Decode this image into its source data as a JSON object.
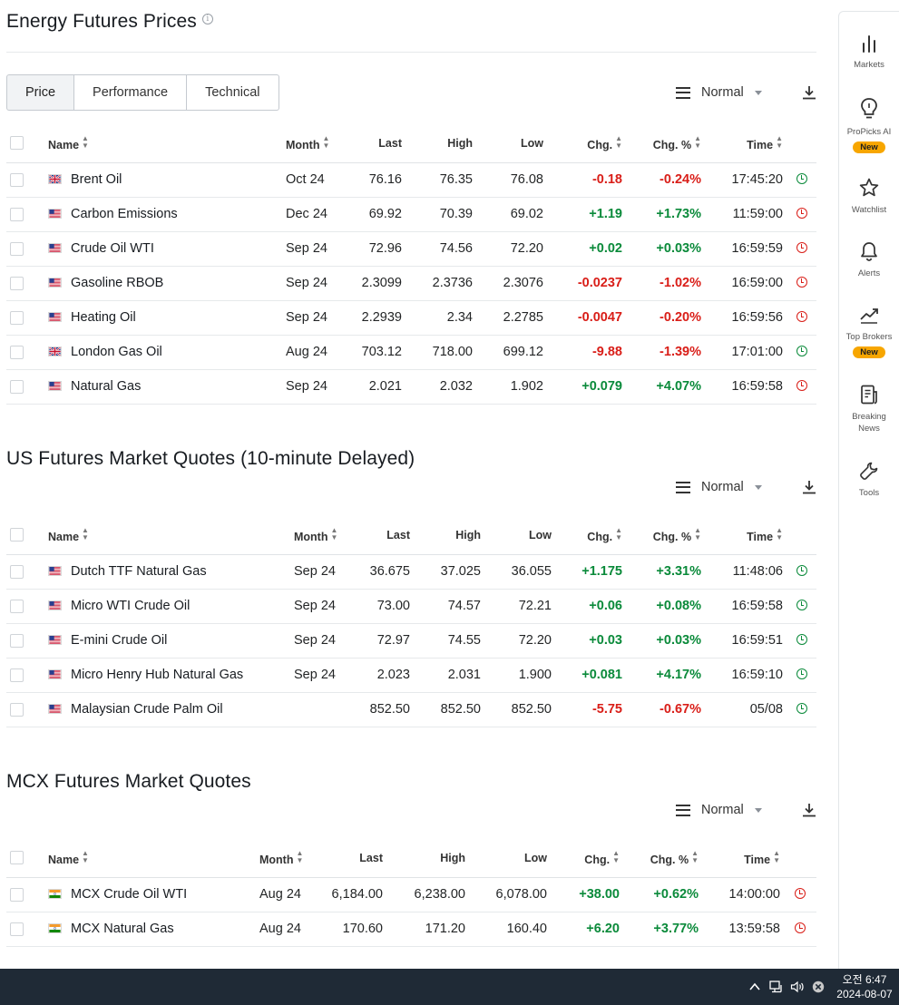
{
  "section1": {
    "title": "Energy Futures Prices",
    "tabs": [
      "Price",
      "Performance",
      "Technical"
    ],
    "view_label": "Normal",
    "columns": [
      "Name",
      "Month",
      "Last",
      "High",
      "Low",
      "Chg.",
      "Chg. %",
      "Time"
    ],
    "rows": [
      {
        "flag": "uk",
        "name": "Brent Oil",
        "month": "Oct 24",
        "last": "76.16",
        "high": "76.35",
        "low": "76.08",
        "chg": "-0.18",
        "pct": "-0.24%",
        "time": "17:45:20",
        "dir": "down",
        "status": "green"
      },
      {
        "flag": "us",
        "name": "Carbon Emissions",
        "month": "Dec 24",
        "last": "69.92",
        "high": "70.39",
        "low": "69.02",
        "chg": "+1.19",
        "pct": "+1.73%",
        "time": "11:59:00",
        "dir": "up",
        "status": "red"
      },
      {
        "flag": "us",
        "name": "Crude Oil WTI",
        "month": "Sep 24",
        "last": "72.96",
        "high": "74.56",
        "low": "72.20",
        "chg": "+0.02",
        "pct": "+0.03%",
        "time": "16:59:59",
        "dir": "up",
        "status": "red"
      },
      {
        "flag": "us",
        "name": "Gasoline RBOB",
        "month": "Sep 24",
        "last": "2.3099",
        "high": "2.3736",
        "low": "2.3076",
        "chg": "-0.0237",
        "pct": "-1.02%",
        "time": "16:59:00",
        "dir": "down",
        "status": "red"
      },
      {
        "flag": "us",
        "name": "Heating Oil",
        "month": "Sep 24",
        "last": "2.2939",
        "high": "2.34",
        "low": "2.2785",
        "chg": "-0.0047",
        "pct": "-0.20%",
        "time": "16:59:56",
        "dir": "down",
        "status": "red"
      },
      {
        "flag": "uk",
        "name": "London Gas Oil",
        "month": "Aug 24",
        "last": "703.12",
        "high": "718.00",
        "low": "699.12",
        "chg": "-9.88",
        "pct": "-1.39%",
        "time": "17:01:00",
        "dir": "down",
        "status": "green"
      },
      {
        "flag": "us",
        "name": "Natural Gas",
        "month": "Sep 24",
        "last": "2.021",
        "high": "2.032",
        "low": "1.902",
        "chg": "+0.079",
        "pct": "+4.07%",
        "time": "16:59:58",
        "dir": "up",
        "status": "red"
      }
    ]
  },
  "section2": {
    "title": "US Futures Market Quotes (10-minute Delayed)",
    "view_label": "Normal",
    "columns": [
      "Name",
      "Month",
      "Last",
      "High",
      "Low",
      "Chg.",
      "Chg. %",
      "Time"
    ],
    "rows": [
      {
        "flag": "us",
        "name": "Dutch TTF Natural Gas",
        "month": "Sep 24",
        "last": "36.675",
        "high": "37.025",
        "low": "36.055",
        "chg": "+1.175",
        "pct": "+3.31%",
        "time": "11:48:06",
        "dir": "up",
        "status": "green"
      },
      {
        "flag": "us",
        "name": "Micro WTI Crude Oil",
        "month": "Sep 24",
        "last": "73.00",
        "high": "74.57",
        "low": "72.21",
        "chg": "+0.06",
        "pct": "+0.08%",
        "time": "16:59:58",
        "dir": "up",
        "status": "green"
      },
      {
        "flag": "us",
        "name": "E-mini Crude Oil",
        "month": "Sep 24",
        "last": "72.97",
        "high": "74.55",
        "low": "72.20",
        "chg": "+0.03",
        "pct": "+0.03%",
        "time": "16:59:51",
        "dir": "up",
        "status": "green"
      },
      {
        "flag": "us",
        "name": "Micro Henry Hub Natural Gas",
        "month": "Sep 24",
        "last": "2.023",
        "high": "2.031",
        "low": "1.900",
        "chg": "+0.081",
        "pct": "+4.17%",
        "time": "16:59:10",
        "dir": "up",
        "status": "green"
      },
      {
        "flag": "us",
        "name": "Malaysian Crude Palm Oil",
        "month": "",
        "last": "852.50",
        "high": "852.50",
        "low": "852.50",
        "chg": "-5.75",
        "pct": "-0.67%",
        "time": "05/08",
        "dir": "down",
        "status": "green"
      }
    ]
  },
  "section3": {
    "title": "MCX Futures Market Quotes",
    "view_label": "Normal",
    "columns": [
      "Name",
      "Month",
      "Last",
      "High",
      "Low",
      "Chg.",
      "Chg. %",
      "Time"
    ],
    "rows": [
      {
        "flag": "in",
        "name": "MCX Crude Oil WTI",
        "month": "Aug 24",
        "last": "6,184.00",
        "high": "6,238.00",
        "low": "6,078.00",
        "chg": "+38.00",
        "pct": "+0.62%",
        "time": "14:00:00",
        "dir": "up",
        "status": "red"
      },
      {
        "flag": "in",
        "name": "MCX Natural Gas",
        "month": "Aug 24",
        "last": "170.60",
        "high": "171.20",
        "low": "160.40",
        "chg": "+6.20",
        "pct": "+3.77%",
        "time": "13:59:58",
        "dir": "up",
        "status": "red"
      }
    ]
  },
  "sidebar": {
    "markets": "Markets",
    "propicks": "ProPicks AI",
    "propicks_badge": "New",
    "watchlist": "Watchlist",
    "alerts": "Alerts",
    "topbrokers": "Top Brokers",
    "topbrokers_badge": "New",
    "news_line1": "Breaking",
    "news_line2": "News",
    "tools": "Tools"
  },
  "taskbar": {
    "time": "오전 6:47",
    "date": "2024-08-07"
  },
  "colors": {
    "up": "#0a8a3a",
    "down": "#d91e18",
    "badge": "#f7a600",
    "taskbar": "#1f2a36"
  }
}
